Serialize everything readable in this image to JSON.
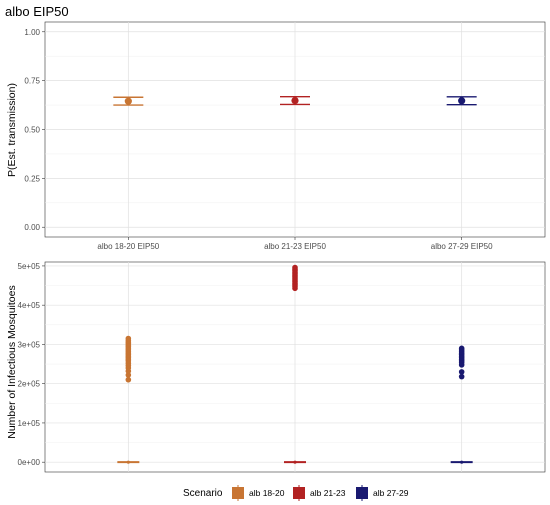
{
  "chart_data": [
    {
      "type": "errorbar",
      "title": "albo EIP50",
      "ylabel": "P(Est. transmission)",
      "xlabel": "",
      "ylim": [
        0,
        1
      ],
      "yticks": [
        "0.00",
        "0.25",
        "0.50",
        "0.75",
        "1.00"
      ],
      "ytick_values": [
        0,
        0.25,
        0.5,
        0.75,
        1.0
      ],
      "categories": [
        "albo 18-20 EIP50",
        "albo 21-23 EIP50",
        "albo 27-29 EIP50"
      ],
      "points": [
        {
          "category": "albo 18-20 EIP50",
          "value": 0.645,
          "lower": 0.625,
          "upper": 0.665,
          "color": "#C87533"
        },
        {
          "category": "albo 21-23 EIP50",
          "value": 0.648,
          "lower": 0.628,
          "upper": 0.668,
          "color": "#B22222"
        },
        {
          "category": "albo 27-29 EIP50",
          "value": 0.647,
          "lower": 0.627,
          "upper": 0.667,
          "color": "#191970"
        }
      ],
      "grid": true
    },
    {
      "type": "boxplot",
      "ylabel": "Number of Infectious Mosquitoes",
      "xlabel": "",
      "ylim": [
        0,
        500000
      ],
      "yticks": [
        "0e+00",
        "1e+05",
        "2e+05",
        "3e+05",
        "4e+05",
        "5e+05"
      ],
      "ytick_values": [
        0,
        100000,
        200000,
        300000,
        400000,
        500000
      ],
      "categories": [
        "alb 18-20",
        "alb 21-23",
        "alb 27-29"
      ],
      "series": [
        {
          "name": "alb 18-20",
          "color": "#C87533",
          "median": 0,
          "q1": 0,
          "q3": 0,
          "outliers": [
            210000,
            222000,
            232000,
            240000,
            246000,
            252000,
            258000,
            262000,
            266000,
            270000,
            274000,
            278000,
            282000,
            286000,
            290000,
            294000,
            298000,
            302000,
            306000,
            310000,
            315000
          ]
        },
        {
          "name": "alb 21-23",
          "color": "#B22222",
          "median": 0,
          "q1": 0,
          "q3": 0,
          "outliers": [
            443000,
            448000,
            452000,
            456000,
            460000,
            464000,
            468000,
            472000,
            476000,
            480000,
            484000,
            488000,
            492000,
            496000
          ]
        },
        {
          "name": "alb 27-29",
          "color": "#191970",
          "median": 0,
          "q1": 0,
          "q3": 0,
          "outliers": [
            218000,
            230000,
            248000,
            254000,
            258000,
            262000,
            266000,
            270000,
            274000,
            278000,
            282000,
            286000,
            290000
          ]
        }
      ],
      "grid": true
    }
  ],
  "legend": {
    "title": "Scenario",
    "position": "bottom",
    "items": [
      {
        "label": "alb 18-20",
        "color": "#C87533"
      },
      {
        "label": "alb 21-23",
        "color": "#B22222"
      },
      {
        "label": "alb 27-29",
        "color": "#191970"
      }
    ]
  }
}
